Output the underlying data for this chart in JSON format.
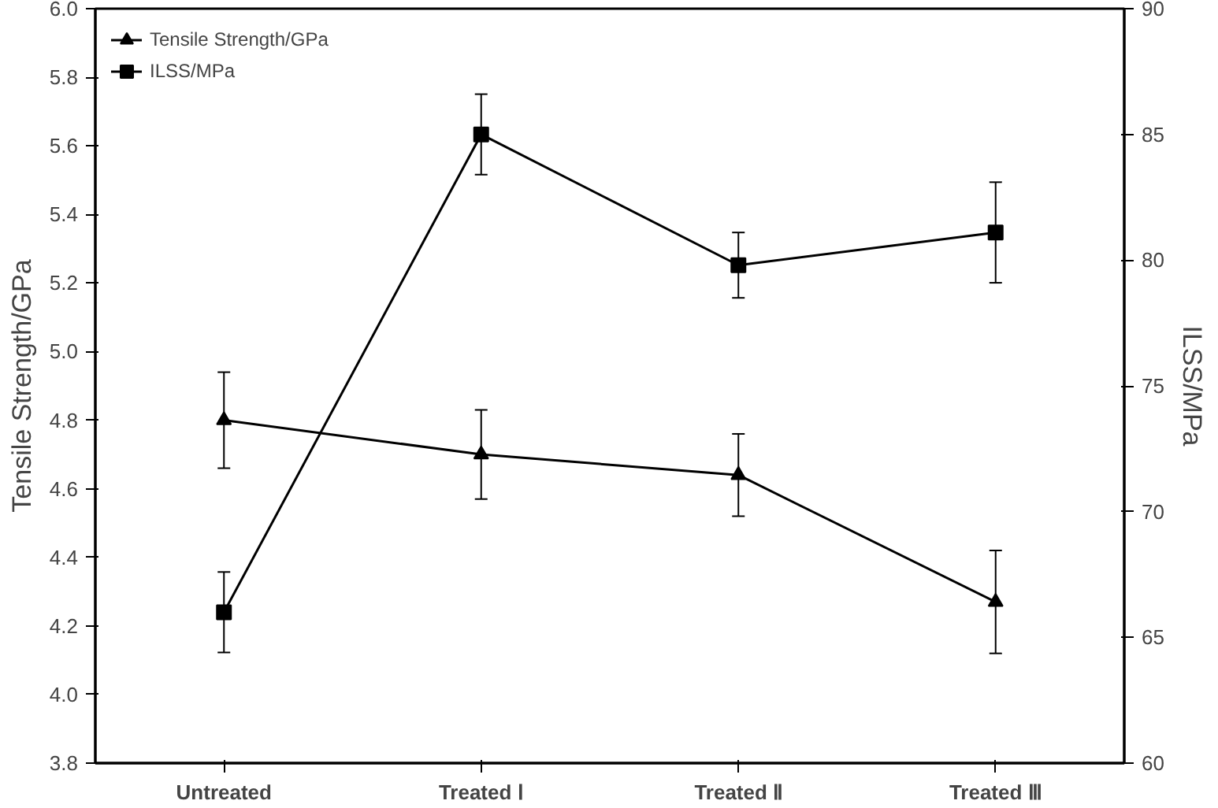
{
  "chart_data": {
    "type": "line",
    "categories": [
      "Untreated",
      "Treated Ⅰ",
      "Treated Ⅱ",
      "Treated Ⅲ"
    ],
    "ylabel": "Tensile Strength/GPa",
    "y2label": "ILSS/MPa",
    "ylim": [
      3.8,
      6.0
    ],
    "yticks": [
      3.8,
      {
        "value": 4,
        "label": "4.0"
      },
      4.2,
      4.4,
      4.6,
      4.8,
      {
        "value": 5,
        "label": "5.0"
      },
      5.2,
      5.4,
      5.6,
      5.8,
      {
        "value": 6,
        "label": "6.0"
      }
    ],
    "y2lim": [
      60,
      90
    ],
    "y2ticks": [
      60,
      65,
      70,
      75,
      80,
      85,
      90
    ],
    "legend": "top left",
    "grid": false,
    "line_style": "solid",
    "series": [
      {
        "name": "Tensile Strength/GPa",
        "color": "#000000",
        "marker": "triangle",
        "values": [
          4.8,
          4.7,
          4.64,
          4.27
        ],
        "errors": [
          0.14,
          0.13,
          0.12,
          0.15
        ]
      },
      {
        "name": "ILSS/MPa",
        "color": "#000000",
        "marker": "square",
        "axis": "y2",
        "values": [
          66,
          85,
          79.8,
          81.1
        ],
        "errors": [
          1.6,
          1.6,
          1.3,
          2.0
        ]
      }
    ]
  }
}
